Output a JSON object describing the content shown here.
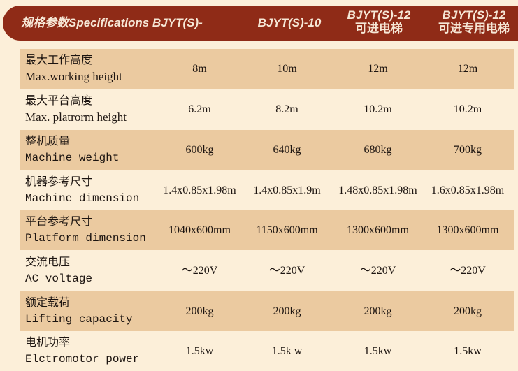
{
  "header": {
    "spec_label": "规格参数Specifications",
    "models": [
      {
        "name": "BJYT(S)-",
        "sub": ""
      },
      {
        "name": "BJYT(S)-10",
        "sub": ""
      },
      {
        "name": "BJYT(S)-12",
        "sub": "可进电梯"
      },
      {
        "name": "BJYT(S)-12",
        "sub": "可进专用电梯"
      }
    ]
  },
  "colors": {
    "header_bg": "#8f2b17",
    "shaded_row": "#ebcaa0",
    "background": "#fcefd9"
  },
  "rows": [
    {
      "cn": "最大工作高度",
      "en": "Max.working height",
      "values": [
        "8m",
        "10m",
        "12m",
        "12m"
      ]
    },
    {
      "cn": "最大平台高度",
      "en": "Max. platrorm height",
      "values": [
        "6.2m",
        "8.2m",
        "10.2m",
        "10.2m"
      ]
    },
    {
      "cn": "整机质量",
      "en": "Machine weight",
      "values": [
        "600kg",
        "640kg",
        "680kg",
        "700kg"
      ]
    },
    {
      "cn": "机器参考尺寸",
      "en": "Machine dimension",
      "values": [
        "1.4x0.85x1.98m",
        "1.4x0.85x1.9m",
        "1.48x0.85x1.98m",
        "1.6x0.85x1.98m"
      ]
    },
    {
      "cn": "平台参考尺寸",
      "en": "Platform dimension",
      "values": [
        "1040x600mm",
        "1150x600mm",
        "1300x600mm",
        "1300x600mm"
      ]
    },
    {
      "cn": "交流电压",
      "en": "AC voltage",
      "values": [
        "～220V",
        "～220V",
        "～220V",
        "～220V"
      ]
    },
    {
      "cn": "额定载荷",
      "en": "Lifting capacity",
      "values": [
        "200kg",
        "200kg",
        "200kg",
        "200kg"
      ]
    },
    {
      "cn": "电机功率",
      "en": "Elctromotor power",
      "values": [
        "1.5kw",
        "1.5k w",
        "1.5kw",
        "1.5kw"
      ]
    }
  ]
}
